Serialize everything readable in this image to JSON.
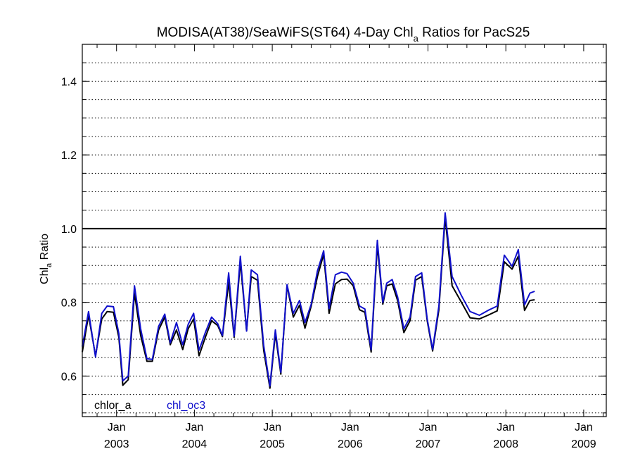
{
  "chart_data": {
    "type": "line",
    "title": "MODISA(AT38)/SeaWiFS(ST64) 4-Day Chl",
    "title_sub": "a",
    "title_rest": " Ratios for PacS25",
    "ylabel_main": "Chl",
    "ylabel_sub": "a",
    "ylabel_rest": " Ratio",
    "xlim": [
      2002.56,
      2009.29
    ],
    "ylim": [
      0.49,
      1.5
    ],
    "grid": "horizontal dotted every 0.05",
    "reference_line": 1.0,
    "y_ticks": [
      {
        "value": 0.6,
        "label": "0.6"
      },
      {
        "value": 0.8,
        "label": "0.8"
      },
      {
        "value": 1.0,
        "label": "1.0"
      },
      {
        "value": 1.2,
        "label": "1.2"
      },
      {
        "value": 1.4,
        "label": "1.4"
      }
    ],
    "x_ticks": [
      {
        "value": 2003.0,
        "month": "Jan",
        "year": "2003"
      },
      {
        "value": 2004.0,
        "month": "Jan",
        "year": "2004"
      },
      {
        "value": 2005.0,
        "month": "Jan",
        "year": "2005"
      },
      {
        "value": 2006.0,
        "month": "Jan",
        "year": "2006"
      },
      {
        "value": 2007.0,
        "month": "Jan",
        "year": "2007"
      },
      {
        "value": 2008.0,
        "month": "Jan",
        "year": "2008"
      },
      {
        "value": 2009.0,
        "month": "Jan",
        "year": "2009"
      }
    ],
    "legend": [
      {
        "name": "chlor_a",
        "color": "#000000"
      },
      {
        "name": "chl_oc3",
        "color": "#1010cc"
      }
    ],
    "series": [
      {
        "name": "chlor_a",
        "color": "#000000",
        "points": [
          [
            2002.56,
            0.665
          ],
          [
            2002.64,
            0.765
          ],
          [
            2002.73,
            0.655
          ],
          [
            2002.81,
            0.755
          ],
          [
            2002.88,
            0.775
          ],
          [
            2002.96,
            0.773
          ],
          [
            2003.03,
            0.705
          ],
          [
            2003.08,
            0.575
          ],
          [
            2003.15,
            0.59
          ],
          [
            2003.23,
            0.825
          ],
          [
            2003.31,
            0.71
          ],
          [
            2003.39,
            0.64
          ],
          [
            2003.46,
            0.64
          ],
          [
            2003.54,
            0.725
          ],
          [
            2003.62,
            0.76
          ],
          [
            2003.69,
            0.685
          ],
          [
            2003.77,
            0.725
          ],
          [
            2003.85,
            0.672
          ],
          [
            2003.92,
            0.728
          ],
          [
            2003.99,
            0.755
          ],
          [
            2004.06,
            0.655
          ],
          [
            2004.14,
            0.705
          ],
          [
            2004.22,
            0.75
          ],
          [
            2004.3,
            0.737
          ],
          [
            2004.36,
            0.707
          ],
          [
            2004.44,
            0.855
          ],
          [
            2004.51,
            0.705
          ],
          [
            2004.59,
            0.91
          ],
          [
            2004.67,
            0.723
          ],
          [
            2004.73,
            0.87
          ],
          [
            2004.81,
            0.86
          ],
          [
            2004.89,
            0.67
          ],
          [
            2004.97,
            0.567
          ],
          [
            2005.04,
            0.715
          ],
          [
            2005.11,
            0.605
          ],
          [
            2005.19,
            0.845
          ],
          [
            2005.27,
            0.76
          ],
          [
            2005.35,
            0.792
          ],
          [
            2005.42,
            0.73
          ],
          [
            2005.5,
            0.79
          ],
          [
            2005.58,
            0.87
          ],
          [
            2005.66,
            0.93
          ],
          [
            2005.73,
            0.77
          ],
          [
            2005.81,
            0.85
          ],
          [
            2005.89,
            0.862
          ],
          [
            2005.96,
            0.863
          ],
          [
            2006.04,
            0.845
          ],
          [
            2006.12,
            0.78
          ],
          [
            2006.19,
            0.773
          ],
          [
            2006.27,
            0.665
          ],
          [
            2006.35,
            0.955
          ],
          [
            2006.42,
            0.795
          ],
          [
            2006.47,
            0.845
          ],
          [
            2006.54,
            0.85
          ],
          [
            2006.61,
            0.805
          ],
          [
            2006.69,
            0.718
          ],
          [
            2006.77,
            0.75
          ],
          [
            2006.84,
            0.86
          ],
          [
            2006.92,
            0.87
          ],
          [
            2006.99,
            0.75
          ],
          [
            2007.06,
            0.668
          ],
          [
            2007.14,
            0.78
          ],
          [
            2007.22,
            1.03
          ],
          [
            2007.31,
            0.845
          ],
          [
            2007.43,
            0.8
          ],
          [
            2007.54,
            0.758
          ],
          [
            2007.66,
            0.755
          ],
          [
            2007.77,
            0.765
          ],
          [
            2007.89,
            0.777
          ],
          [
            2007.98,
            0.91
          ],
          [
            2008.08,
            0.89
          ],
          [
            2008.16,
            0.925
          ],
          [
            2008.24,
            0.778
          ],
          [
            2008.31,
            0.805
          ],
          [
            2008.37,
            0.807
          ]
        ]
      },
      {
        "name": "chl_oc3",
        "color": "#1010cc",
        "points": [
          [
            2002.56,
            0.68
          ],
          [
            2002.64,
            0.775
          ],
          [
            2002.73,
            0.652
          ],
          [
            2002.81,
            0.77
          ],
          [
            2002.88,
            0.79
          ],
          [
            2002.96,
            0.788
          ],
          [
            2003.03,
            0.715
          ],
          [
            2003.08,
            0.587
          ],
          [
            2003.15,
            0.6
          ],
          [
            2003.23,
            0.845
          ],
          [
            2003.31,
            0.728
          ],
          [
            2003.39,
            0.647
          ],
          [
            2003.46,
            0.645
          ],
          [
            2003.54,
            0.735
          ],
          [
            2003.62,
            0.768
          ],
          [
            2003.69,
            0.69
          ],
          [
            2003.77,
            0.745
          ],
          [
            2003.85,
            0.685
          ],
          [
            2003.92,
            0.74
          ],
          [
            2003.99,
            0.77
          ],
          [
            2004.06,
            0.67
          ],
          [
            2004.14,
            0.718
          ],
          [
            2004.22,
            0.76
          ],
          [
            2004.3,
            0.742
          ],
          [
            2004.36,
            0.71
          ],
          [
            2004.44,
            0.88
          ],
          [
            2004.51,
            0.708
          ],
          [
            2004.59,
            0.925
          ],
          [
            2004.67,
            0.722
          ],
          [
            2004.73,
            0.888
          ],
          [
            2004.81,
            0.875
          ],
          [
            2004.89,
            0.683
          ],
          [
            2004.97,
            0.573
          ],
          [
            2005.04,
            0.725
          ],
          [
            2005.11,
            0.61
          ],
          [
            2005.19,
            0.848
          ],
          [
            2005.27,
            0.77
          ],
          [
            2005.35,
            0.805
          ],
          [
            2005.42,
            0.745
          ],
          [
            2005.5,
            0.795
          ],
          [
            2005.58,
            0.885
          ],
          [
            2005.66,
            0.94
          ],
          [
            2005.73,
            0.783
          ],
          [
            2005.81,
            0.875
          ],
          [
            2005.89,
            0.882
          ],
          [
            2005.96,
            0.878
          ],
          [
            2006.04,
            0.852
          ],
          [
            2006.12,
            0.79
          ],
          [
            2006.19,
            0.782
          ],
          [
            2006.27,
            0.672
          ],
          [
            2006.35,
            0.968
          ],
          [
            2006.42,
            0.8
          ],
          [
            2006.47,
            0.852
          ],
          [
            2006.54,
            0.862
          ],
          [
            2006.61,
            0.815
          ],
          [
            2006.69,
            0.728
          ],
          [
            2006.77,
            0.76
          ],
          [
            2006.84,
            0.87
          ],
          [
            2006.92,
            0.88
          ],
          [
            2006.99,
            0.755
          ],
          [
            2007.06,
            0.672
          ],
          [
            2007.14,
            0.79
          ],
          [
            2007.22,
            1.043
          ],
          [
            2007.31,
            0.87
          ],
          [
            2007.43,
            0.818
          ],
          [
            2007.54,
            0.775
          ],
          [
            2007.66,
            0.765
          ],
          [
            2007.77,
            0.778
          ],
          [
            2007.89,
            0.79
          ],
          [
            2007.98,
            0.928
          ],
          [
            2008.08,
            0.898
          ],
          [
            2008.16,
            0.943
          ],
          [
            2008.24,
            0.793
          ],
          [
            2008.31,
            0.825
          ],
          [
            2008.37,
            0.83
          ]
        ]
      }
    ]
  }
}
